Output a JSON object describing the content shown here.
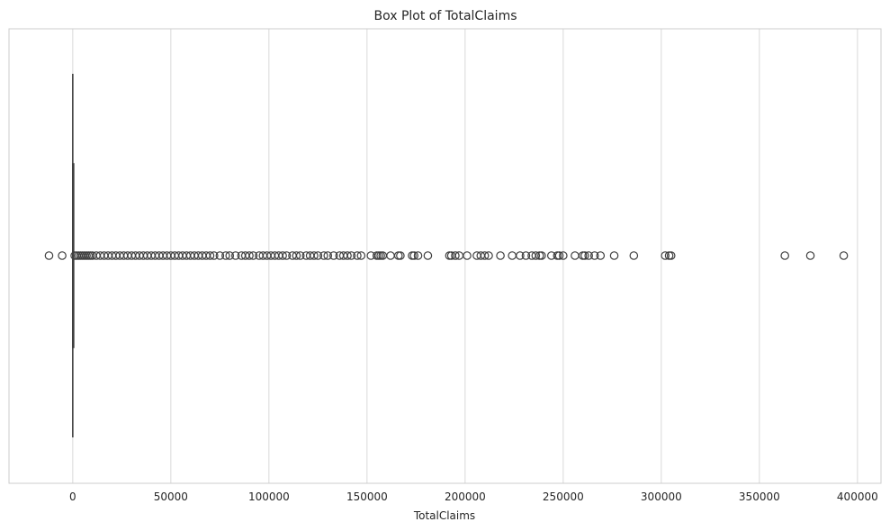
{
  "chart_data": {
    "type": "box",
    "orientation": "horizontal",
    "title": "Box Plot of TotalClaims",
    "xlabel": "TotalClaims",
    "ylabel": "",
    "xlim": [
      -32500,
      412000
    ],
    "xticks": [
      0,
      50000,
      100000,
      150000,
      200000,
      250000,
      300000,
      350000,
      400000
    ],
    "xtick_labels": [
      "0",
      "50000",
      "100000",
      "150000",
      "200000",
      "250000",
      "300000",
      "350000",
      "400000"
    ],
    "grid": "vertical",
    "series": [
      {
        "q1": 0,
        "median": 0,
        "q3": 0,
        "whisker_low": 0,
        "whisker_high": 0,
        "outliers": [
          -12100,
          -5400,
          1000,
          2000,
          3000,
          4000,
          5000,
          6000,
          7000,
          8000,
          9000,
          10000,
          12000,
          14000,
          16000,
          18000,
          20000,
          22000,
          24000,
          26000,
          28000,
          30000,
          32000,
          34000,
          36000,
          38000,
          40000,
          42000,
          44000,
          46000,
          48000,
          50000,
          52000,
          54000,
          56000,
          58000,
          60000,
          62000,
          64000,
          66000,
          68000,
          70000,
          72000,
          75000,
          78000,
          80000,
          83000,
          86000,
          88000,
          90000,
          92000,
          95000,
          97000,
          99000,
          101000,
          103000,
          105000,
          107000,
          109000,
          112000,
          114000,
          116000,
          119000,
          121000,
          123000,
          125000,
          128000,
          130000,
          133000,
          136000,
          138000,
          140000,
          142000,
          145000,
          147000,
          152000,
          155000,
          156000,
          157000,
          158000,
          162000,
          166000,
          167000,
          173000,
          174000,
          176000,
          181000,
          192000,
          193000,
          195000,
          197000,
          201000,
          206000,
          208000,
          210000,
          212000,
          218000,
          224000,
          228000,
          231000,
          234000,
          236000,
          238000,
          239000,
          244000,
          247000,
          248000,
          250000,
          256000,
          260000,
          261000,
          263000,
          266000,
          269000,
          276000,
          286000,
          302000,
          304000,
          305000,
          363000,
          376000,
          393000
        ]
      }
    ],
    "colors": {
      "box_edge": "#3f3f3f",
      "grid": "#d9d9d9",
      "frame": "#cccccc",
      "text": "#262626"
    }
  }
}
